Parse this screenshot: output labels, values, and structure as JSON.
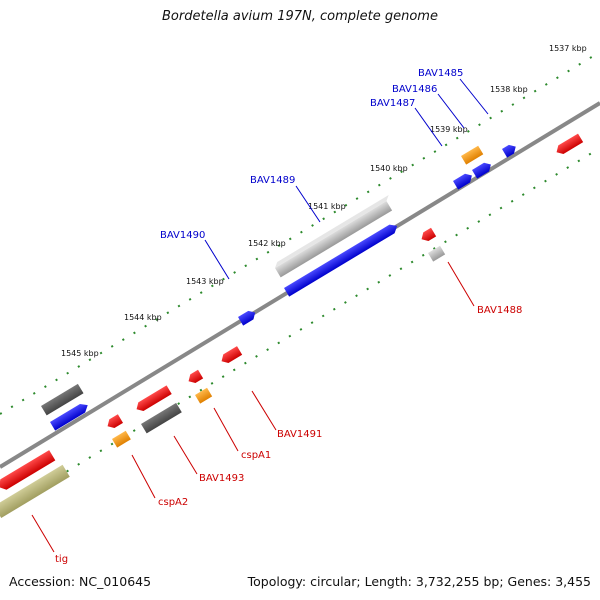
{
  "title": "Bordetella avium 197N, complete genome",
  "accession": "Accession: NC_010645",
  "summary": "Topology: circular; Length: 3,732,255 bp; Genes: 3,455",
  "colors": {
    "backbone": "#888888",
    "ticks": "#2d8a2d",
    "forward_label": "#0000cc",
    "reverse_label": "#cc0000",
    "cds_blue": "#0000ee",
    "cds_red": "#ee0000",
    "cds_orange": "#ff9900",
    "gray_light": "#bbbbbb",
    "gray_dark": "#555555",
    "olive": "#b5b275"
  },
  "kbp_ticks": [
    "1537 kbp",
    "1538 kbp",
    "1539 kbp",
    "1540 kbp",
    "1541 kbp",
    "1542 kbp",
    "1543 kbp",
    "1544 kbp",
    "1545 kbp"
  ],
  "forward_gene_labels": [
    "BAV1485",
    "BAV1486",
    "BAV1487",
    "BAV1489",
    "BAV1490"
  ],
  "reverse_gene_labels": [
    "BAV1488",
    "BAV1491",
    "cspA1",
    "BAV1493",
    "cspA2",
    "tig"
  ]
}
